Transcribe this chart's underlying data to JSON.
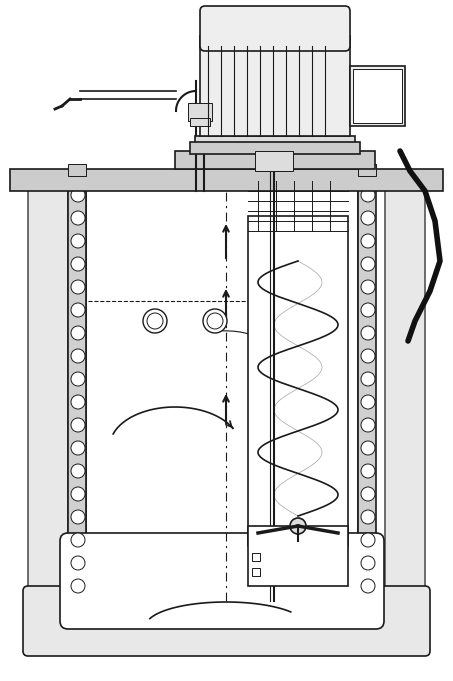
{
  "bg_color": "#ffffff",
  "line_color": "#1a1a1a",
  "hatch_color": "#555555",
  "fig_width": 4.53,
  "fig_height": 6.81,
  "dpi": 100
}
